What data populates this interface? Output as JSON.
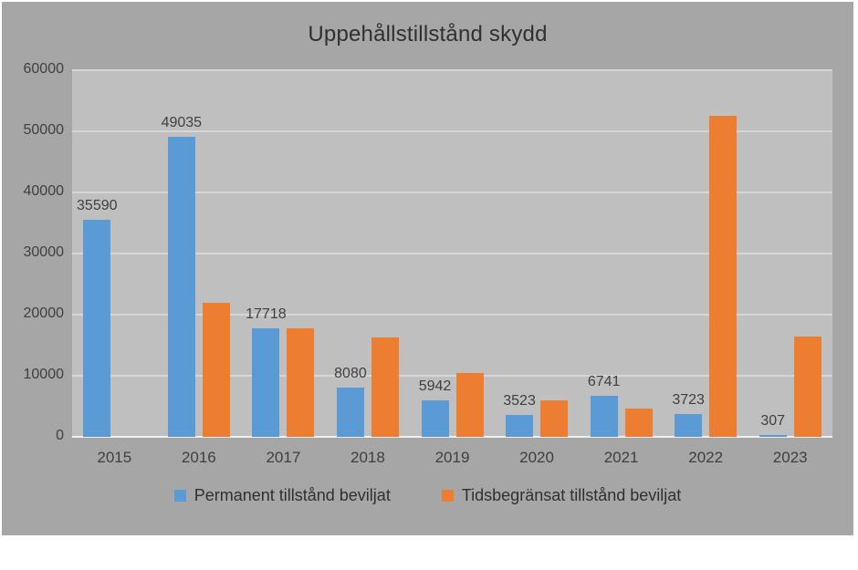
{
  "title": "Uppehållstillstånd skydd",
  "colors": {
    "canvas_background": "#a6a6a6",
    "plot_background": "#bfbfbf",
    "gridline": "#d6d6d6",
    "axis_line": "#efefef",
    "text": "#3f3f3f",
    "series_blue": "#5B9BD5",
    "series_orange": "#ED7D31"
  },
  "chart_data": {
    "type": "bar",
    "title": "Uppehållstillstånd skydd",
    "categories": [
      "2015",
      "2016",
      "2017",
      "2018",
      "2019",
      "2020",
      "2021",
      "2022",
      "2023"
    ],
    "series": [
      {
        "name": "Permanent tillstånd beviljat",
        "color": "#5B9BD5",
        "values": [
          35590,
          49035,
          17718,
          8080,
          5942,
          3523,
          6741,
          3723,
          307
        ],
        "data_labels": true
      },
      {
        "name": "Tidsbegränsat tillstånd beviljat",
        "color": "#ED7D31",
        "values": [
          0,
          21900,
          17700,
          16200,
          10500,
          5900,
          4700,
          52600,
          16400
        ],
        "data_labels": false
      }
    ],
    "xlabel": "",
    "ylabel": "",
    "ylim": [
      0,
      60000
    ],
    "yticks": [
      0,
      10000,
      20000,
      30000,
      40000,
      50000,
      60000
    ],
    "grid": true,
    "legend_position": "bottom"
  }
}
